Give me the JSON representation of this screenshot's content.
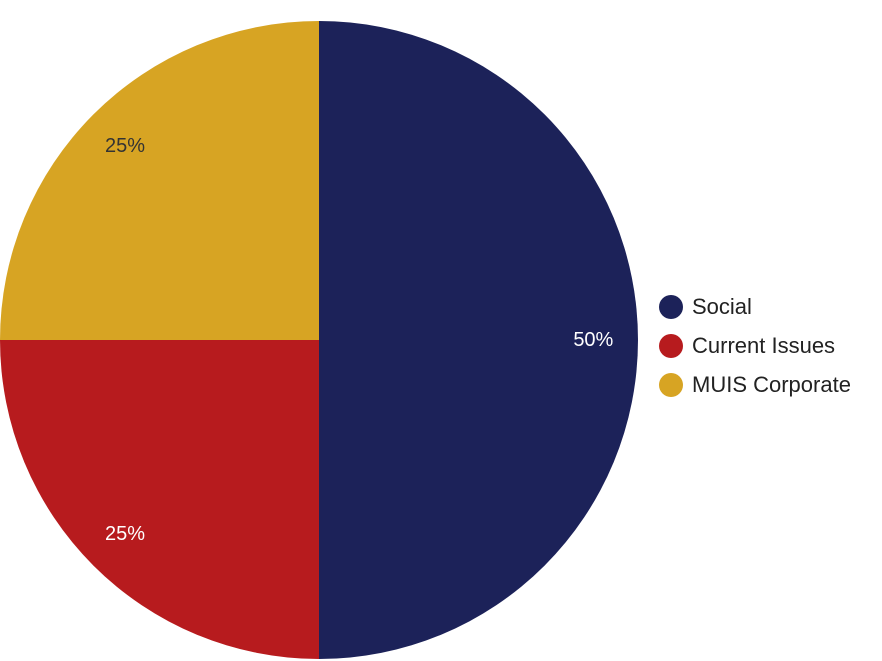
{
  "chart_data": {
    "type": "pie",
    "legend_position": "right",
    "slices": [
      {
        "name": "Social",
        "value": 50,
        "label": "50%",
        "color": "#1c2259",
        "label_color": "#ffffff"
      },
      {
        "name": "Current Issues",
        "value": 25,
        "label": "25%",
        "color": "#b71b1e",
        "label_color": "#ffffff"
      },
      {
        "name": "MUIS Corporate",
        "value": 25,
        "label": "25%",
        "color": "#d7a423",
        "label_color": "#333333"
      }
    ]
  }
}
